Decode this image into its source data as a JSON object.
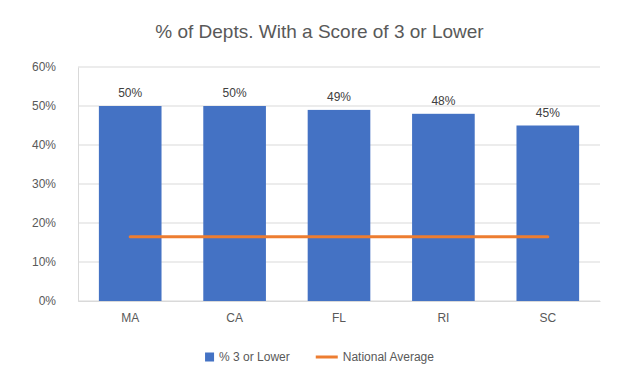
{
  "chart_data": {
    "type": "bar",
    "title": "% of Depts. With a Score of 3 or Lower",
    "categories": [
      "MA",
      "CA",
      "FL",
      "RI",
      "SC"
    ],
    "series": [
      {
        "name": "% 3 or Lower",
        "type": "bar",
        "color": "#4472c4",
        "values": [
          50,
          50,
          49,
          48,
          45
        ],
        "value_labels": [
          "50%",
          "50%",
          "49%",
          "48%",
          "45%"
        ]
      },
      {
        "name": "National Average",
        "type": "line",
        "color": "#ed7d31",
        "values": [
          16.5,
          16.5,
          16.5,
          16.5,
          16.5
        ]
      }
    ],
    "ylim": [
      0,
      60
    ],
    "yticks": [
      {
        "value": 0,
        "label": "0%"
      },
      {
        "value": 10,
        "label": "10%"
      },
      {
        "value": 20,
        "label": "20%"
      },
      {
        "value": 30,
        "label": "30%"
      },
      {
        "value": 40,
        "label": "40%"
      },
      {
        "value": 50,
        "label": "50%"
      },
      {
        "value": 60,
        "label": "60%"
      }
    ],
    "grid": true,
    "legend": "bottom",
    "data_labels": true
  }
}
